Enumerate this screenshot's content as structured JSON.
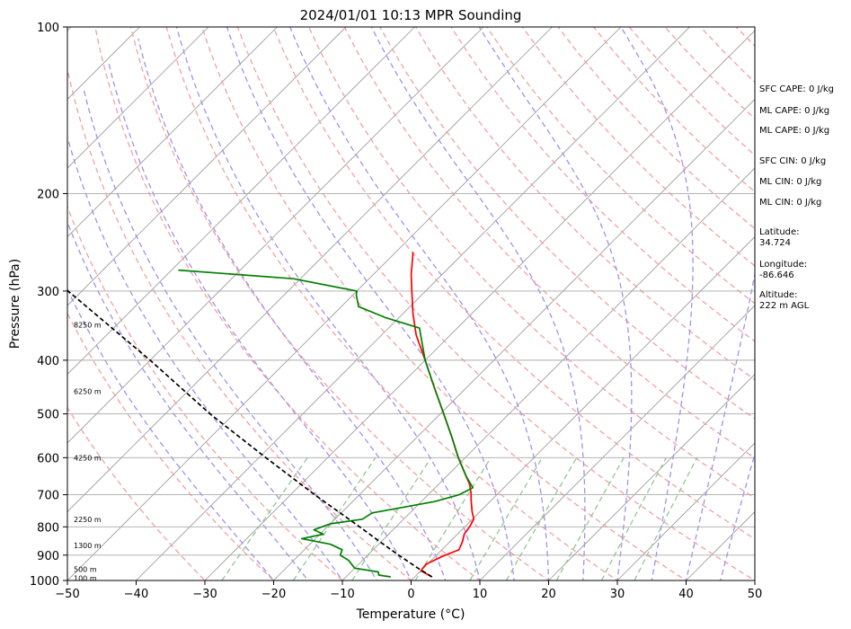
{
  "chart_data": {
    "type": "line",
    "title": "2024/01/01 10:13 MPR Sounding",
    "xlabel": "Temperature (°C)",
    "ylabel": "Pressure (hPa)",
    "xlim": [
      -50,
      50
    ],
    "ylim": [
      1000,
      100
    ],
    "y_scale": "log",
    "x_ticks": [
      -50,
      -40,
      -30,
      -20,
      -10,
      0,
      10,
      20,
      30,
      40,
      50
    ],
    "x_tick_labels": [
      "−50",
      "−40",
      "−30",
      "−20",
      "−10",
      "0",
      "10",
      "20",
      "30",
      "40",
      "50"
    ],
    "y_ticks": [
      1000,
      900,
      800,
      700,
      600,
      500,
      400,
      300,
      200,
      100
    ],
    "y_tick_labels": [
      "1000",
      "900",
      "800",
      "700",
      "600",
      "500",
      "400",
      "300",
      "200",
      "100"
    ],
    "grid": true,
    "skew": "temperature lines skewed ~45° to the right",
    "background_lines": {
      "isotherms_color": "#999999",
      "dry_adiabats_color": "#f4a0a0",
      "moist_adiabats_color": "#a090f0",
      "mixing_ratio_color": "#90c890"
    },
    "series": [
      {
        "color": "#ff0000",
        "points": [
          {
            "p": 985,
            "t": 2.5
          },
          {
            "p": 960,
            "t": 0.0
          },
          {
            "p": 935,
            "t": -0.2
          },
          {
            "p": 905,
            "t": 1.0
          },
          {
            "p": 880,
            "t": 2.5
          },
          {
            "p": 850,
            "t": 1.8
          },
          {
            "p": 825,
            "t": 1.0
          },
          {
            "p": 800,
            "t": 0.7
          },
          {
            "p": 775,
            "t": 0.2
          },
          {
            "p": 750,
            "t": -1.2
          },
          {
            "p": 715,
            "t": -3.0
          },
          {
            "p": 695,
            "t": -4.0
          },
          {
            "p": 670,
            "t": -5.5
          },
          {
            "p": 640,
            "t": -7.8
          },
          {
            "p": 600,
            "t": -11.0
          },
          {
            "p": 550,
            "t": -15.0
          },
          {
            "p": 500,
            "t": -19.5
          },
          {
            "p": 450,
            "t": -24.5
          },
          {
            "p": 400,
            "t": -30.0
          },
          {
            "p": 360,
            "t": -35.0
          },
          {
            "p": 330,
            "t": -38.5
          },
          {
            "p": 300,
            "t": -42.0
          },
          {
            "p": 280,
            "t": -44.5
          },
          {
            "p": 255,
            "t": -47.5
          }
        ]
      },
      {
        "color": "#008000",
        "points": [
          {
            "p": 985,
            "t": -3.5
          },
          {
            "p": 978,
            "t": -5.5
          },
          {
            "p": 965,
            "t": -6.0
          },
          {
            "p": 950,
            "t": -10.0
          },
          {
            "p": 920,
            "t": -12.0
          },
          {
            "p": 900,
            "t": -14.0
          },
          {
            "p": 880,
            "t": -14.5
          },
          {
            "p": 860,
            "t": -17.0
          },
          {
            "p": 840,
            "t": -22.0
          },
          {
            "p": 825,
            "t": -19.5
          },
          {
            "p": 810,
            "t": -21.5
          },
          {
            "p": 790,
            "t": -20.0
          },
          {
            "p": 775,
            "t": -16.0
          },
          {
            "p": 755,
            "t": -15.5
          },
          {
            "p": 720,
            "t": -8.0
          },
          {
            "p": 700,
            "t": -5.5
          },
          {
            "p": 680,
            "t": -4.5
          },
          {
            "p": 650,
            "t": -7.0
          },
          {
            "p": 600,
            "t": -11.0
          },
          {
            "p": 550,
            "t": -15.0
          },
          {
            "p": 500,
            "t": -19.5
          },
          {
            "p": 450,
            "t": -24.5
          },
          {
            "p": 400,
            "t": -30.0
          },
          {
            "p": 350,
            "t": -35.5
          },
          {
            "p": 335,
            "t": -42.0
          },
          {
            "p": 320,
            "t": -47.5
          },
          {
            "p": 305,
            "t": -49.5
          },
          {
            "p": 300,
            "t": -50.0
          },
          {
            "p": 285,
            "t": -61.0
          },
          {
            "p": 275,
            "t": -79.0
          }
        ]
      },
      {
        "color": "#000000",
        "dashed": true,
        "points": [
          {
            "p": 985,
            "t": 2.5
          },
          {
            "p": 950,
            "t": -0.8
          },
          {
            "p": 900,
            "t": -5.5
          },
          {
            "p": 850,
            "t": -10.3
          },
          {
            "p": 800,
            "t": -15.3
          },
          {
            "p": 700,
            "t": -26.5
          },
          {
            "p": 600,
            "t": -39.0
          },
          {
            "p": 500,
            "t": -53.5
          },
          {
            "p": 400,
            "t": -70.0
          },
          {
            "p": 300,
            "t": -92.0
          },
          {
            "p": 285,
            "t": -96.0
          }
        ]
      }
    ],
    "height_labels": [
      {
        "p": 990,
        "text": "100 m"
      },
      {
        "p": 955,
        "text": "500 m"
      },
      {
        "p": 865,
        "text": "1300 m"
      },
      {
        "p": 775,
        "text": "2250 m"
      },
      {
        "p": 600,
        "text": "4250 m"
      },
      {
        "p": 455,
        "text": "6250 m"
      },
      {
        "p": 345,
        "text": "8250 m"
      }
    ],
    "annotations": [
      "SFC CAPE: 0 J/kg",
      "ML CAPE: 0 J/kg",
      "ML CAPE: 0 J/kg",
      "SFC CIN: 0 J/kg",
      "ML CIN: 0 J/kg",
      "ML CIN: 0 J/kg",
      "Latitude:",
      "34.724",
      "Longitude:",
      "-86.646",
      "Altitude:",
      "222 m AGL"
    ]
  }
}
